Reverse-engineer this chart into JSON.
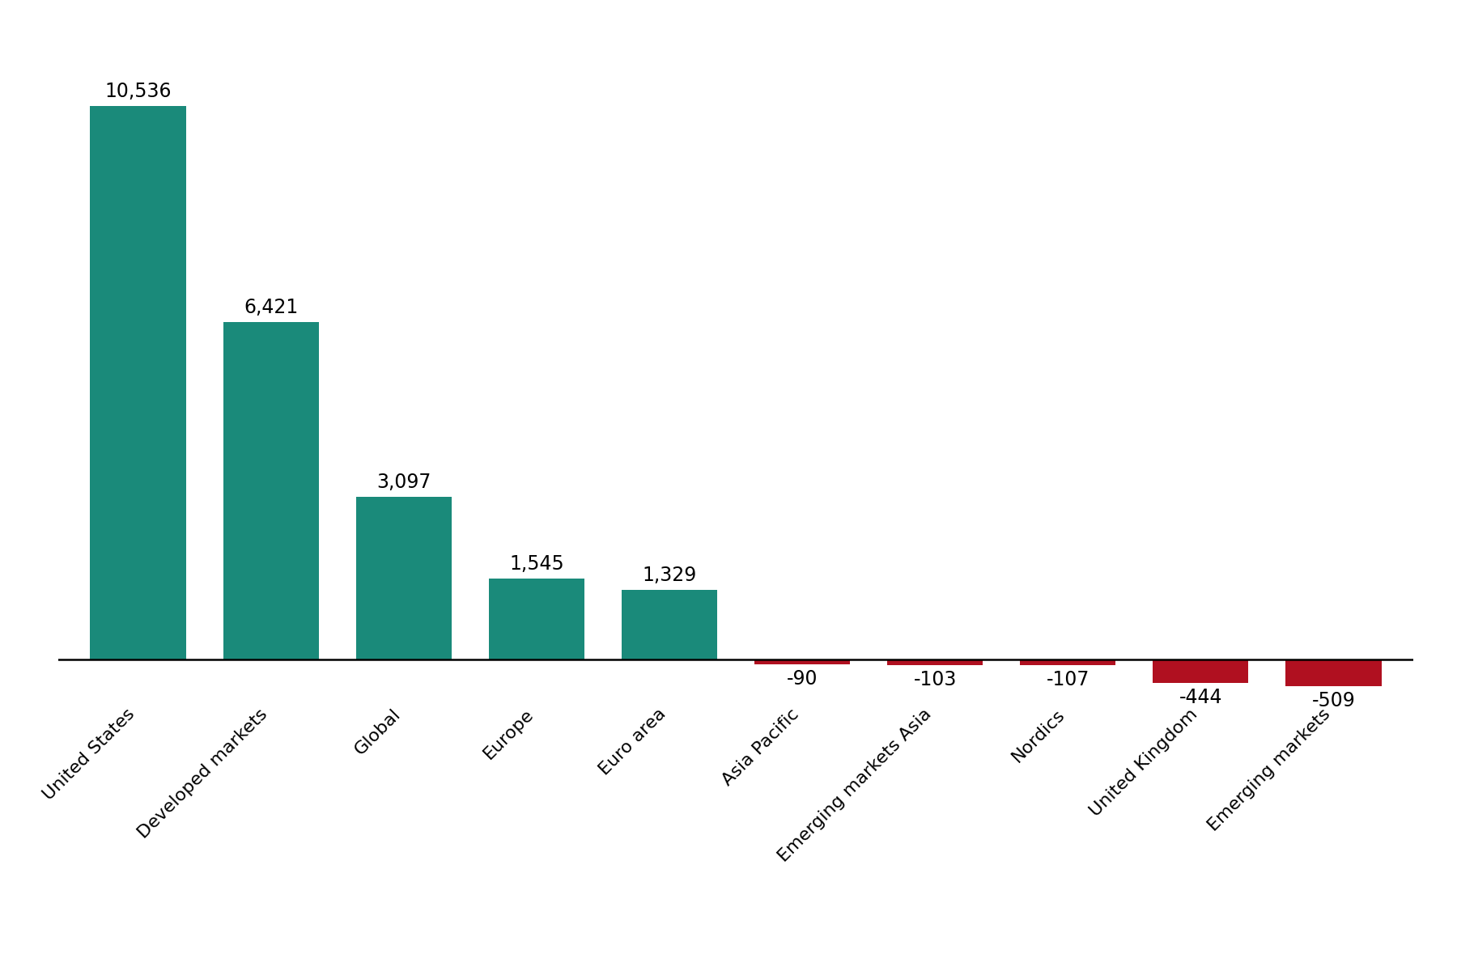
{
  "categories": [
    "United States",
    "Developed markets",
    "Global",
    "Europe",
    "Euro area",
    "Asia Pacific",
    "Emerging markets Asia",
    "Nordics",
    "United Kingdom",
    "Emerging markets"
  ],
  "values": [
    10536,
    6421,
    3097,
    1545,
    1329,
    -90,
    -103,
    -107,
    -444,
    -509
  ],
  "bar_colors_positive": "#1a8a7a",
  "bar_colors_negative": "#b01020",
  "value_labels": [
    "10,536",
    "6,421",
    "3,097",
    "1,545",
    "1,329",
    "-90",
    "-103",
    "-107",
    "-444",
    "-509"
  ],
  "background_color": "#ffffff",
  "bar_width": 0.72,
  "ylim": [
    -750,
    12000
  ],
  "tick_fontsize": 16,
  "value_fontsize": 17
}
